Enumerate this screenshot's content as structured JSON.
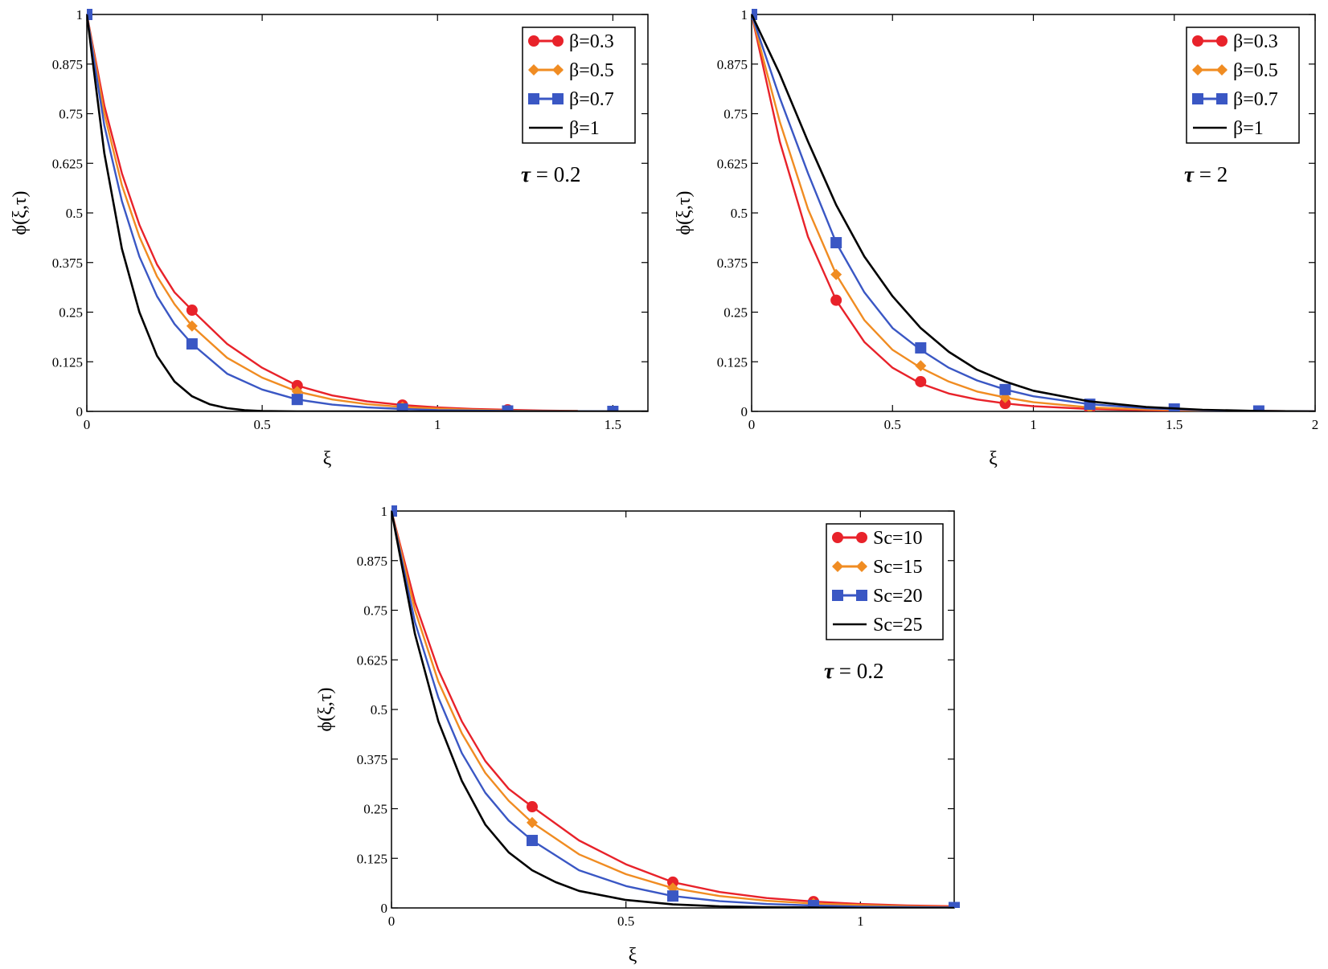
{
  "colors": {
    "red": "#e8222a",
    "orange": "#f08c22",
    "blue": "#3a57c4",
    "black": "#000000"
  },
  "chart_data": [
    {
      "type": "line",
      "xlabel": "ξ",
      "ylabel": "ϕ(ξ,τ)",
      "xlim": [
        0,
        1.6
      ],
      "ylim": [
        0,
        1
      ],
      "xticks": [
        "0",
        "0.5",
        "1",
        "1.5"
      ],
      "xtick_values": [
        0,
        0.5,
        1,
        1.5
      ],
      "yticks": [
        "0",
        "0.125",
        "0.25",
        "0.375",
        "0.5",
        "0.625",
        "0.75",
        "0.875",
        "1"
      ],
      "ytick_values": [
        0,
        0.125,
        0.25,
        0.375,
        0.5,
        0.625,
        0.75,
        0.875,
        1
      ],
      "legend_position": "top-right",
      "annotation": {
        "sym": "τ",
        "rest": " = 0.2"
      },
      "series": [
        {
          "name": "β=0.3",
          "color": "red",
          "marker": "circle",
          "x": [
            0,
            0.05,
            0.1,
            0.15,
            0.2,
            0.25,
            0.3,
            0.4,
            0.5,
            0.6,
            0.7,
            0.8,
            0.9,
            1.0,
            1.1,
            1.2,
            1.3,
            1.4
          ],
          "y": [
            1,
            0.77,
            0.6,
            0.47,
            0.37,
            0.3,
            0.255,
            0.17,
            0.11,
            0.065,
            0.04,
            0.025,
            0.016,
            0.01,
            0.006,
            0.004,
            0.002,
            0.001
          ],
          "mx": [
            0,
            0.3,
            0.6,
            0.9,
            1.2
          ],
          "my": [
            1,
            0.255,
            0.065,
            0.016,
            0.004
          ]
        },
        {
          "name": "β=0.5",
          "color": "orange",
          "marker": "diamond",
          "x": [
            0,
            0.05,
            0.1,
            0.15,
            0.2,
            0.25,
            0.3,
            0.4,
            0.5,
            0.6,
            0.7,
            0.8,
            0.9,
            1.0,
            1.1,
            1.2,
            1.3,
            1.4
          ],
          "y": [
            1,
            0.75,
            0.57,
            0.44,
            0.34,
            0.27,
            0.215,
            0.135,
            0.085,
            0.05,
            0.03,
            0.018,
            0.011,
            0.007,
            0.004,
            0.002,
            0.001,
            0.001
          ],
          "mx": [
            0,
            0.3,
            0.6,
            0.9,
            1.2
          ],
          "my": [
            1,
            0.215,
            0.05,
            0.011,
            0.002
          ]
        },
        {
          "name": "β=0.7",
          "color": "blue",
          "marker": "square",
          "x": [
            0,
            0.05,
            0.1,
            0.15,
            0.2,
            0.25,
            0.3,
            0.4,
            0.5,
            0.6,
            0.7,
            0.8,
            0.9,
            1.0,
            1.1,
            1.2,
            1.5
          ],
          "y": [
            1,
            0.72,
            0.53,
            0.39,
            0.29,
            0.22,
            0.17,
            0.095,
            0.055,
            0.03,
            0.017,
            0.01,
            0.006,
            0.003,
            0.002,
            0.001,
            0
          ],
          "mx": [
            0,
            0.3,
            0.6,
            0.9,
            1.2,
            1.5
          ],
          "my": [
            1,
            0.17,
            0.03,
            0.006,
            0.001,
            0
          ]
        },
        {
          "name": "β=1",
          "color": "black",
          "marker": "none",
          "x": [
            0,
            0.05,
            0.1,
            0.15,
            0.2,
            0.25,
            0.3,
            0.35,
            0.4,
            0.45,
            0.5,
            0.6,
            1.6
          ],
          "y": [
            1,
            0.65,
            0.41,
            0.25,
            0.14,
            0.075,
            0.038,
            0.018,
            0.008,
            0.003,
            0.001,
            0,
            0
          ],
          "mx": [],
          "my": []
        }
      ]
    },
    {
      "type": "line",
      "xlabel": "ξ",
      "ylabel": "ϕ(ξ,τ)",
      "xlim": [
        0,
        2
      ],
      "ylim": [
        0,
        1
      ],
      "xticks": [
        "0",
        "0.5",
        "1",
        "1.5",
        "2"
      ],
      "xtick_values": [
        0,
        0.5,
        1,
        1.5,
        2
      ],
      "yticks": [
        "0",
        "0.125",
        "0.25",
        "0.375",
        "0.5",
        "0.625",
        "0.75",
        "0.875",
        "1"
      ],
      "ytick_values": [
        0,
        0.125,
        0.25,
        0.375,
        0.5,
        0.625,
        0.75,
        0.875,
        1
      ],
      "legend_position": "top-right",
      "annotation": {
        "sym": "τ",
        "rest": " = 2"
      },
      "series": [
        {
          "name": "β=0.3",
          "color": "red",
          "marker": "circle",
          "x": [
            0,
            0.1,
            0.2,
            0.3,
            0.4,
            0.5,
            0.6,
            0.7,
            0.8,
            0.9,
            1.0,
            1.2,
            1.4,
            1.6,
            1.8,
            2.0
          ],
          "y": [
            1,
            0.68,
            0.44,
            0.28,
            0.175,
            0.11,
            0.07,
            0.045,
            0.03,
            0.02,
            0.013,
            0.006,
            0.003,
            0.001,
            0.001,
            0
          ],
          "mx": [
            0,
            0.3,
            0.6,
            0.9,
            1.2,
            1.5,
            1.8
          ],
          "my": [
            1,
            0.28,
            0.075,
            0.02,
            0.006,
            0.002,
            0.001
          ]
        },
        {
          "name": "β=0.5",
          "color": "orange",
          "marker": "diamond",
          "x": [
            0,
            0.1,
            0.2,
            0.3,
            0.4,
            0.5,
            0.6,
            0.7,
            0.8,
            0.9,
            1.0,
            1.2,
            1.4,
            1.6,
            1.8,
            2.0
          ],
          "y": [
            1,
            0.73,
            0.51,
            0.345,
            0.23,
            0.155,
            0.11,
            0.075,
            0.05,
            0.035,
            0.023,
            0.01,
            0.005,
            0.002,
            0.001,
            0
          ],
          "mx": [
            0,
            0.3,
            0.6,
            0.9,
            1.2,
            1.5,
            1.8
          ],
          "my": [
            1,
            0.345,
            0.115,
            0.035,
            0.01,
            0.004,
            0.001
          ]
        },
        {
          "name": "β=0.7",
          "color": "blue",
          "marker": "square",
          "x": [
            0,
            0.1,
            0.2,
            0.3,
            0.4,
            0.5,
            0.6,
            0.7,
            0.8,
            0.9,
            1.0,
            1.2,
            1.4,
            1.6,
            1.8,
            2.0
          ],
          "y": [
            1,
            0.79,
            0.6,
            0.425,
            0.3,
            0.21,
            0.155,
            0.11,
            0.078,
            0.055,
            0.038,
            0.018,
            0.008,
            0.003,
            0.001,
            0
          ],
          "mx": [
            0,
            0.3,
            0.6,
            0.9,
            1.2,
            1.5,
            1.8
          ],
          "my": [
            1,
            0.425,
            0.16,
            0.055,
            0.018,
            0.006,
            0.001
          ]
        },
        {
          "name": "β=1",
          "color": "black",
          "marker": "none",
          "x": [
            0,
            0.1,
            0.2,
            0.3,
            0.4,
            0.5,
            0.6,
            0.7,
            0.8,
            0.9,
            1.0,
            1.2,
            1.4,
            1.6,
            1.8,
            2.0
          ],
          "y": [
            1,
            0.85,
            0.68,
            0.52,
            0.39,
            0.29,
            0.21,
            0.15,
            0.105,
            0.075,
            0.052,
            0.025,
            0.011,
            0.004,
            0.001,
            0
          ],
          "mx": [],
          "my": []
        }
      ]
    },
    {
      "type": "line",
      "xlabel": "ξ",
      "ylabel": "ϕ(ξ,τ)",
      "xlim": [
        0,
        1.2
      ],
      "ylim": [
        0,
        1
      ],
      "xticks": [
        "0",
        "0.5",
        "1"
      ],
      "xtick_values": [
        0,
        0.5,
        1
      ],
      "yticks": [
        "0",
        "0.125",
        "0.25",
        "0.375",
        "0.5",
        "0.625",
        "0.75",
        "0.875",
        "1"
      ],
      "ytick_values": [
        0,
        0.125,
        0.25,
        0.375,
        0.5,
        0.625,
        0.75,
        0.875,
        1
      ],
      "legend_position": "top-right",
      "annotation": {
        "sym": "τ",
        "rest": " = 0.2"
      },
      "series": [
        {
          "name": "Sc=10",
          "color": "red",
          "marker": "circle",
          "x": [
            0,
            0.05,
            0.1,
            0.15,
            0.2,
            0.25,
            0.3,
            0.4,
            0.5,
            0.6,
            0.7,
            0.8,
            0.9,
            1.0,
            1.1,
            1.2
          ],
          "y": [
            1,
            0.77,
            0.6,
            0.47,
            0.37,
            0.3,
            0.255,
            0.17,
            0.11,
            0.065,
            0.04,
            0.025,
            0.016,
            0.01,
            0.006,
            0.004
          ],
          "mx": [
            0,
            0.3,
            0.6,
            0.9
          ],
          "my": [
            1,
            0.255,
            0.065,
            0.016
          ]
        },
        {
          "name": "Sc=15",
          "color": "orange",
          "marker": "diamond",
          "x": [
            0,
            0.05,
            0.1,
            0.15,
            0.2,
            0.25,
            0.3,
            0.4,
            0.5,
            0.6,
            0.7,
            0.8,
            0.9,
            1.0,
            1.1,
            1.2
          ],
          "y": [
            1,
            0.75,
            0.57,
            0.44,
            0.34,
            0.27,
            0.215,
            0.135,
            0.085,
            0.05,
            0.03,
            0.018,
            0.011,
            0.007,
            0.004,
            0.002
          ],
          "mx": [
            0,
            0.3,
            0.6,
            0.9
          ],
          "my": [
            1,
            0.215,
            0.05,
            0.011
          ]
        },
        {
          "name": "Sc=20",
          "color": "blue",
          "marker": "square",
          "x": [
            0,
            0.05,
            0.1,
            0.15,
            0.2,
            0.25,
            0.3,
            0.4,
            0.5,
            0.6,
            0.7,
            0.8,
            0.9,
            1.0,
            1.1,
            1.2
          ],
          "y": [
            1,
            0.72,
            0.53,
            0.39,
            0.29,
            0.22,
            0.17,
            0.095,
            0.055,
            0.03,
            0.017,
            0.01,
            0.006,
            0.003,
            0.002,
            0.001
          ],
          "mx": [
            0,
            0.3,
            0.6,
            0.9,
            1.2
          ],
          "my": [
            1,
            0.17,
            0.03,
            0.006,
            0.001
          ]
        },
        {
          "name": "Sc=25",
          "color": "black",
          "marker": "none",
          "x": [
            0,
            0.05,
            0.1,
            0.15,
            0.2,
            0.25,
            0.3,
            0.35,
            0.4,
            0.5,
            0.6,
            0.7,
            0.8,
            1.0,
            1.2
          ],
          "y": [
            1,
            0.69,
            0.47,
            0.32,
            0.21,
            0.14,
            0.095,
            0.065,
            0.043,
            0.02,
            0.009,
            0.004,
            0.002,
            0,
            0
          ],
          "mx": [],
          "my": []
        }
      ]
    }
  ]
}
